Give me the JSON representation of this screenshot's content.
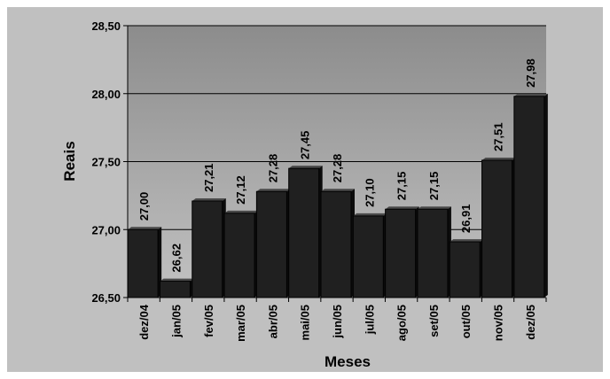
{
  "chart_data": {
    "type": "bar",
    "categories": [
      "dez/04",
      "jan/05",
      "fev/05",
      "mar/05",
      "abr/05",
      "mai/05",
      "jun/05",
      "jul/05",
      "ago/05",
      "set/05",
      "out/05",
      "nov/05",
      "dez/05"
    ],
    "values": [
      27.0,
      26.62,
      27.21,
      27.12,
      27.28,
      27.45,
      27.28,
      27.1,
      27.15,
      27.15,
      26.91,
      27.51,
      27.98
    ],
    "data_labels": [
      "27,00",
      "26,62",
      "27,21",
      "27,12",
      "27,28",
      "27,45",
      "27,28",
      "27,10",
      "27,15",
      "27,15",
      "26,91",
      "27,51",
      "27,98"
    ],
    "yticks": [
      26.5,
      27.0,
      27.5,
      28.0,
      28.5
    ],
    "ytick_labels": [
      "26,50",
      "27,00",
      "27,50",
      "28,00",
      "28,50"
    ],
    "ylim": [
      26.5,
      28.5
    ],
    "xlabel": "Meses",
    "ylabel": "Reais",
    "title": "",
    "grid": true,
    "colors": {
      "background": "#c0c0c0",
      "plot_top": "#8c8c8c",
      "plot_bottom": "#c2c2c2",
      "bar": "#202020",
      "bar_top": "#4a4a4a",
      "bar_side": "#0c0c0c"
    }
  }
}
